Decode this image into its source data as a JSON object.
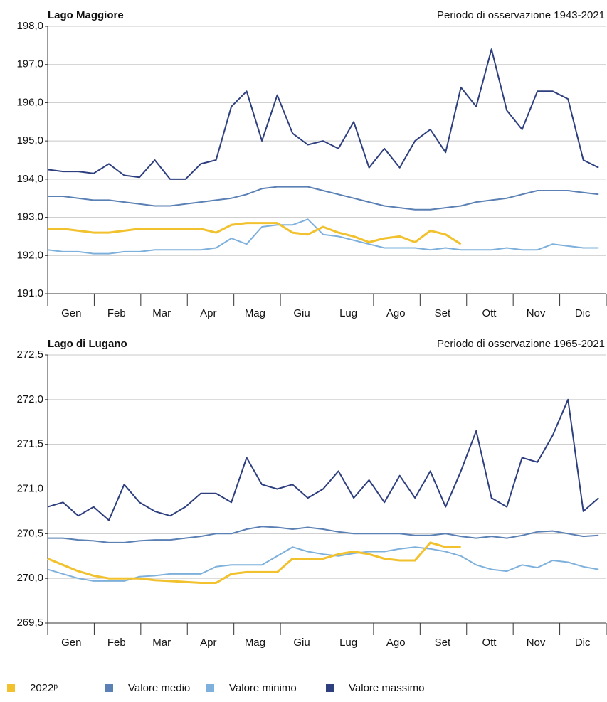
{
  "chart_data": [
    {
      "type": "line",
      "title": "Lago Maggiore",
      "subtitle": "Periodo di osservazione 1943-2021",
      "x": [
        0,
        10,
        20,
        30,
        40,
        50,
        60,
        70,
        80,
        90,
        100,
        110,
        120,
        130,
        140,
        150,
        160,
        170,
        180,
        190,
        200,
        210,
        220,
        230,
        240,
        250,
        260,
        270,
        280,
        290,
        300,
        310,
        320,
        330,
        340,
        350,
        360
      ],
      "xlim": [
        0,
        365
      ],
      "xticks": [
        {
          "value": 15.5,
          "label": "Gen"
        },
        {
          "value": 45,
          "label": "Feb"
        },
        {
          "value": 74.5,
          "label": "Mar"
        },
        {
          "value": 105,
          "label": "Apr"
        },
        {
          "value": 135.5,
          "label": "Mag"
        },
        {
          "value": 166,
          "label": "Giu"
        },
        {
          "value": 196.5,
          "label": "Lug"
        },
        {
          "value": 227.5,
          "label": "Ago"
        },
        {
          "value": 258,
          "label": "Set"
        },
        {
          "value": 288.5,
          "label": "Ott"
        },
        {
          "value": 319,
          "label": "Nov"
        },
        {
          "value": 349.5,
          "label": "Dic"
        }
      ],
      "ylim": [
        191,
        198
      ],
      "yticks": [
        {
          "value": 191,
          "label": "191,0"
        },
        {
          "value": 192,
          "label": "192,0"
        },
        {
          "value": 193,
          "label": "193,0"
        },
        {
          "value": 194,
          "label": "194,0"
        },
        {
          "value": 195,
          "label": "195,0"
        },
        {
          "value": 196,
          "label": "196,0"
        },
        {
          "value": 197,
          "label": "197,0"
        },
        {
          "value": 198,
          "label": "198,0"
        }
      ],
      "grid": true,
      "series": [
        {
          "name": "2022ᵖ",
          "color": "#f2c12e",
          "values": [
            192.7,
            192.7,
            192.65,
            192.6,
            192.6,
            192.65,
            192.7,
            192.7,
            192.7,
            192.7,
            192.7,
            192.6,
            192.8,
            192.85,
            192.85,
            192.85,
            192.6,
            192.55,
            192.75,
            192.6,
            192.5,
            192.35,
            192.45,
            192.5,
            192.35,
            192.65,
            192.55,
            192.3,
            null,
            null,
            null,
            null,
            null,
            null,
            null,
            null,
            null
          ]
        },
        {
          "name": "Valore medio",
          "color": "#5b80b4",
          "values": [
            193.55,
            193.55,
            193.5,
            193.45,
            193.45,
            193.4,
            193.35,
            193.3,
            193.3,
            193.35,
            193.4,
            193.45,
            193.5,
            193.6,
            193.75,
            193.8,
            193.8,
            193.8,
            193.7,
            193.6,
            193.5,
            193.4,
            193.3,
            193.25,
            193.2,
            193.2,
            193.25,
            193.3,
            193.4,
            193.45,
            193.5,
            193.6,
            193.7,
            193.7,
            193.7,
            193.65,
            193.6
          ]
        },
        {
          "name": "Valore minimo",
          "color": "#7eb0dc",
          "values": [
            192.15,
            192.1,
            192.1,
            192.05,
            192.05,
            192.1,
            192.1,
            192.15,
            192.15,
            192.15,
            192.15,
            192.2,
            192.45,
            192.3,
            192.75,
            192.8,
            192.8,
            192.95,
            192.55,
            192.5,
            192.4,
            192.3,
            192.2,
            192.2,
            192.2,
            192.15,
            192.2,
            192.15,
            192.15,
            192.15,
            192.2,
            192.15,
            192.15,
            192.3,
            192.25,
            192.2,
            192.2
          ]
        },
        {
          "name": "Valore massimo",
          "color": "#2e3f7f",
          "values": [
            194.25,
            194.2,
            194.2,
            194.15,
            194.4,
            194.1,
            194.05,
            194.5,
            194.0,
            194.0,
            194.4,
            194.5,
            195.9,
            196.3,
            195.0,
            196.2,
            195.2,
            194.9,
            195.0,
            194.8,
            195.5,
            194.3,
            194.8,
            194.3,
            195.0,
            195.3,
            194.7,
            196.4,
            195.9,
            197.4,
            195.8,
            195.3,
            196.3,
            196.3,
            196.1,
            194.5,
            194.3
          ]
        }
      ]
    },
    {
      "type": "line",
      "title": "Lago di Lugano",
      "subtitle": "Periodo di osservazione 1965-2021",
      "x": [
        0,
        10,
        20,
        30,
        40,
        50,
        60,
        70,
        80,
        90,
        100,
        110,
        120,
        130,
        140,
        150,
        160,
        170,
        180,
        190,
        200,
        210,
        220,
        230,
        240,
        250,
        260,
        270,
        280,
        290,
        300,
        310,
        320,
        330,
        340,
        350,
        360
      ],
      "xlim": [
        0,
        365
      ],
      "xticks": [
        {
          "value": 15.5,
          "label": "Gen"
        },
        {
          "value": 45,
          "label": "Feb"
        },
        {
          "value": 74.5,
          "label": "Mar"
        },
        {
          "value": 105,
          "label": "Apr"
        },
        {
          "value": 135.5,
          "label": "Mag"
        },
        {
          "value": 166,
          "label": "Giu"
        },
        {
          "value": 196.5,
          "label": "Lug"
        },
        {
          "value": 227.5,
          "label": "Ago"
        },
        {
          "value": 258,
          "label": "Set"
        },
        {
          "value": 288.5,
          "label": "Ott"
        },
        {
          "value": 319,
          "label": "Nov"
        },
        {
          "value": 349.5,
          "label": "Dic"
        }
      ],
      "ylim": [
        269.5,
        272.5
      ],
      "yticks": [
        {
          "value": 269.5,
          "label": "269,5"
        },
        {
          "value": 270,
          "label": "270,0"
        },
        {
          "value": 270.5,
          "label": "270,5"
        },
        {
          "value": 271,
          "label": "271,0"
        },
        {
          "value": 271.5,
          "label": "271,5"
        },
        {
          "value": 272,
          "label": "272,0"
        },
        {
          "value": 272.5,
          "label": "272,5"
        }
      ],
      "grid": true,
      "series": [
        {
          "color": "#f2c12e",
          "values": [
            270.22,
            270.15,
            270.08,
            270.03,
            270.0,
            270.0,
            270.0,
            269.98,
            269.97,
            269.96,
            269.95,
            269.95,
            270.05,
            270.07,
            270.07,
            270.07,
            270.22,
            270.22,
            270.22,
            270.27,
            270.3,
            270.27,
            270.22,
            270.2,
            270.2,
            270.4,
            270.35,
            270.35,
            null,
            null,
            null,
            null,
            null,
            null,
            null,
            null,
            null
          ]
        },
        {
          "color": "#5b80b4",
          "values": [
            270.45,
            270.45,
            270.43,
            270.42,
            270.4,
            270.4,
            270.42,
            270.43,
            270.43,
            270.45,
            270.47,
            270.5,
            270.5,
            270.55,
            270.58,
            270.57,
            270.55,
            270.57,
            270.55,
            270.52,
            270.5,
            270.5,
            270.5,
            270.5,
            270.48,
            270.48,
            270.5,
            270.47,
            270.45,
            270.47,
            270.45,
            270.48,
            270.52,
            270.53,
            270.5,
            270.47,
            270.48
          ]
        },
        {
          "color": "#7eb0dc",
          "values": [
            270.1,
            270.05,
            270.0,
            269.97,
            269.97,
            269.97,
            270.02,
            270.03,
            270.05,
            270.05,
            270.05,
            270.13,
            270.15,
            270.15,
            270.15,
            270.25,
            270.35,
            270.3,
            270.27,
            270.25,
            270.28,
            270.3,
            270.3,
            270.33,
            270.35,
            270.33,
            270.3,
            270.25,
            270.15,
            270.1,
            270.08,
            270.15,
            270.12,
            270.2,
            270.18,
            270.13,
            270.1
          ]
        },
        {
          "color": "#2e3f7f",
          "values": [
            270.8,
            270.85,
            270.7,
            270.8,
            270.65,
            271.05,
            270.85,
            270.75,
            270.7,
            270.8,
            270.95,
            270.95,
            270.85,
            271.35,
            271.05,
            271.0,
            271.05,
            270.9,
            271.0,
            271.2,
            270.9,
            271.1,
            270.85,
            271.15,
            270.9,
            271.2,
            270.8,
            271.2,
            271.65,
            270.9,
            270.8,
            271.35,
            271.3,
            271.6,
            272.0,
            270.75,
            270.9
          ]
        }
      ]
    }
  ]
}
